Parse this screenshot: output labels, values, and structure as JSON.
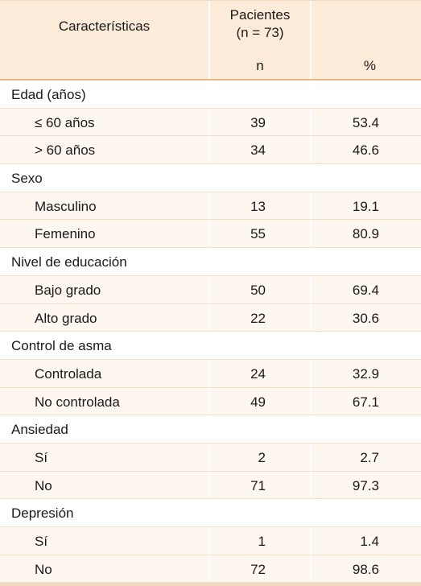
{
  "header": {
    "characteristics": "Características",
    "group_line1": "Pacientes",
    "group_line2": "(n = 73)",
    "n": "n",
    "pct": "%"
  },
  "rows": [
    {
      "type": "category",
      "label": "Edad (años)"
    },
    {
      "type": "item",
      "label": "≤ 60 años",
      "n": "39",
      "pct": "53.4"
    },
    {
      "type": "item",
      "label": "> 60 años",
      "n": "34",
      "pct": "46.6"
    },
    {
      "type": "category",
      "label": "Sexo"
    },
    {
      "type": "item",
      "label": "Masculino",
      "n": "13",
      "pct": "19.1"
    },
    {
      "type": "item",
      "label": "Femenino",
      "n": "55",
      "pct": "80.9"
    },
    {
      "type": "category",
      "label": "Nivel de educación"
    },
    {
      "type": "item",
      "label": "Bajo grado",
      "n": "50",
      "pct": "69.4"
    },
    {
      "type": "item",
      "label": "Alto grado",
      "n": "22",
      "pct": "30.6"
    },
    {
      "type": "category",
      "label": "Control de asma"
    },
    {
      "type": "item",
      "label": "Controlada",
      "n": "24",
      "pct": "32.9"
    },
    {
      "type": "item",
      "label": "No controlada",
      "n": "49",
      "pct": "67.1"
    },
    {
      "type": "category",
      "label": "Ansiedad"
    },
    {
      "type": "item",
      "label": "Sí",
      "n": "2",
      "pct": "2.7"
    },
    {
      "type": "item",
      "label": "No",
      "n": "71",
      "pct": "97.3"
    },
    {
      "type": "category",
      "label": "Depresión"
    },
    {
      "type": "item",
      "label": "Sí",
      "n": "1",
      "pct": "1.4"
    },
    {
      "type": "item",
      "label": "No",
      "n": "72",
      "pct": "98.6"
    }
  ],
  "colors": {
    "header_bg": "#fcebd9",
    "item_row_bg": "#fef7ef",
    "rule": "#e8b886"
  }
}
